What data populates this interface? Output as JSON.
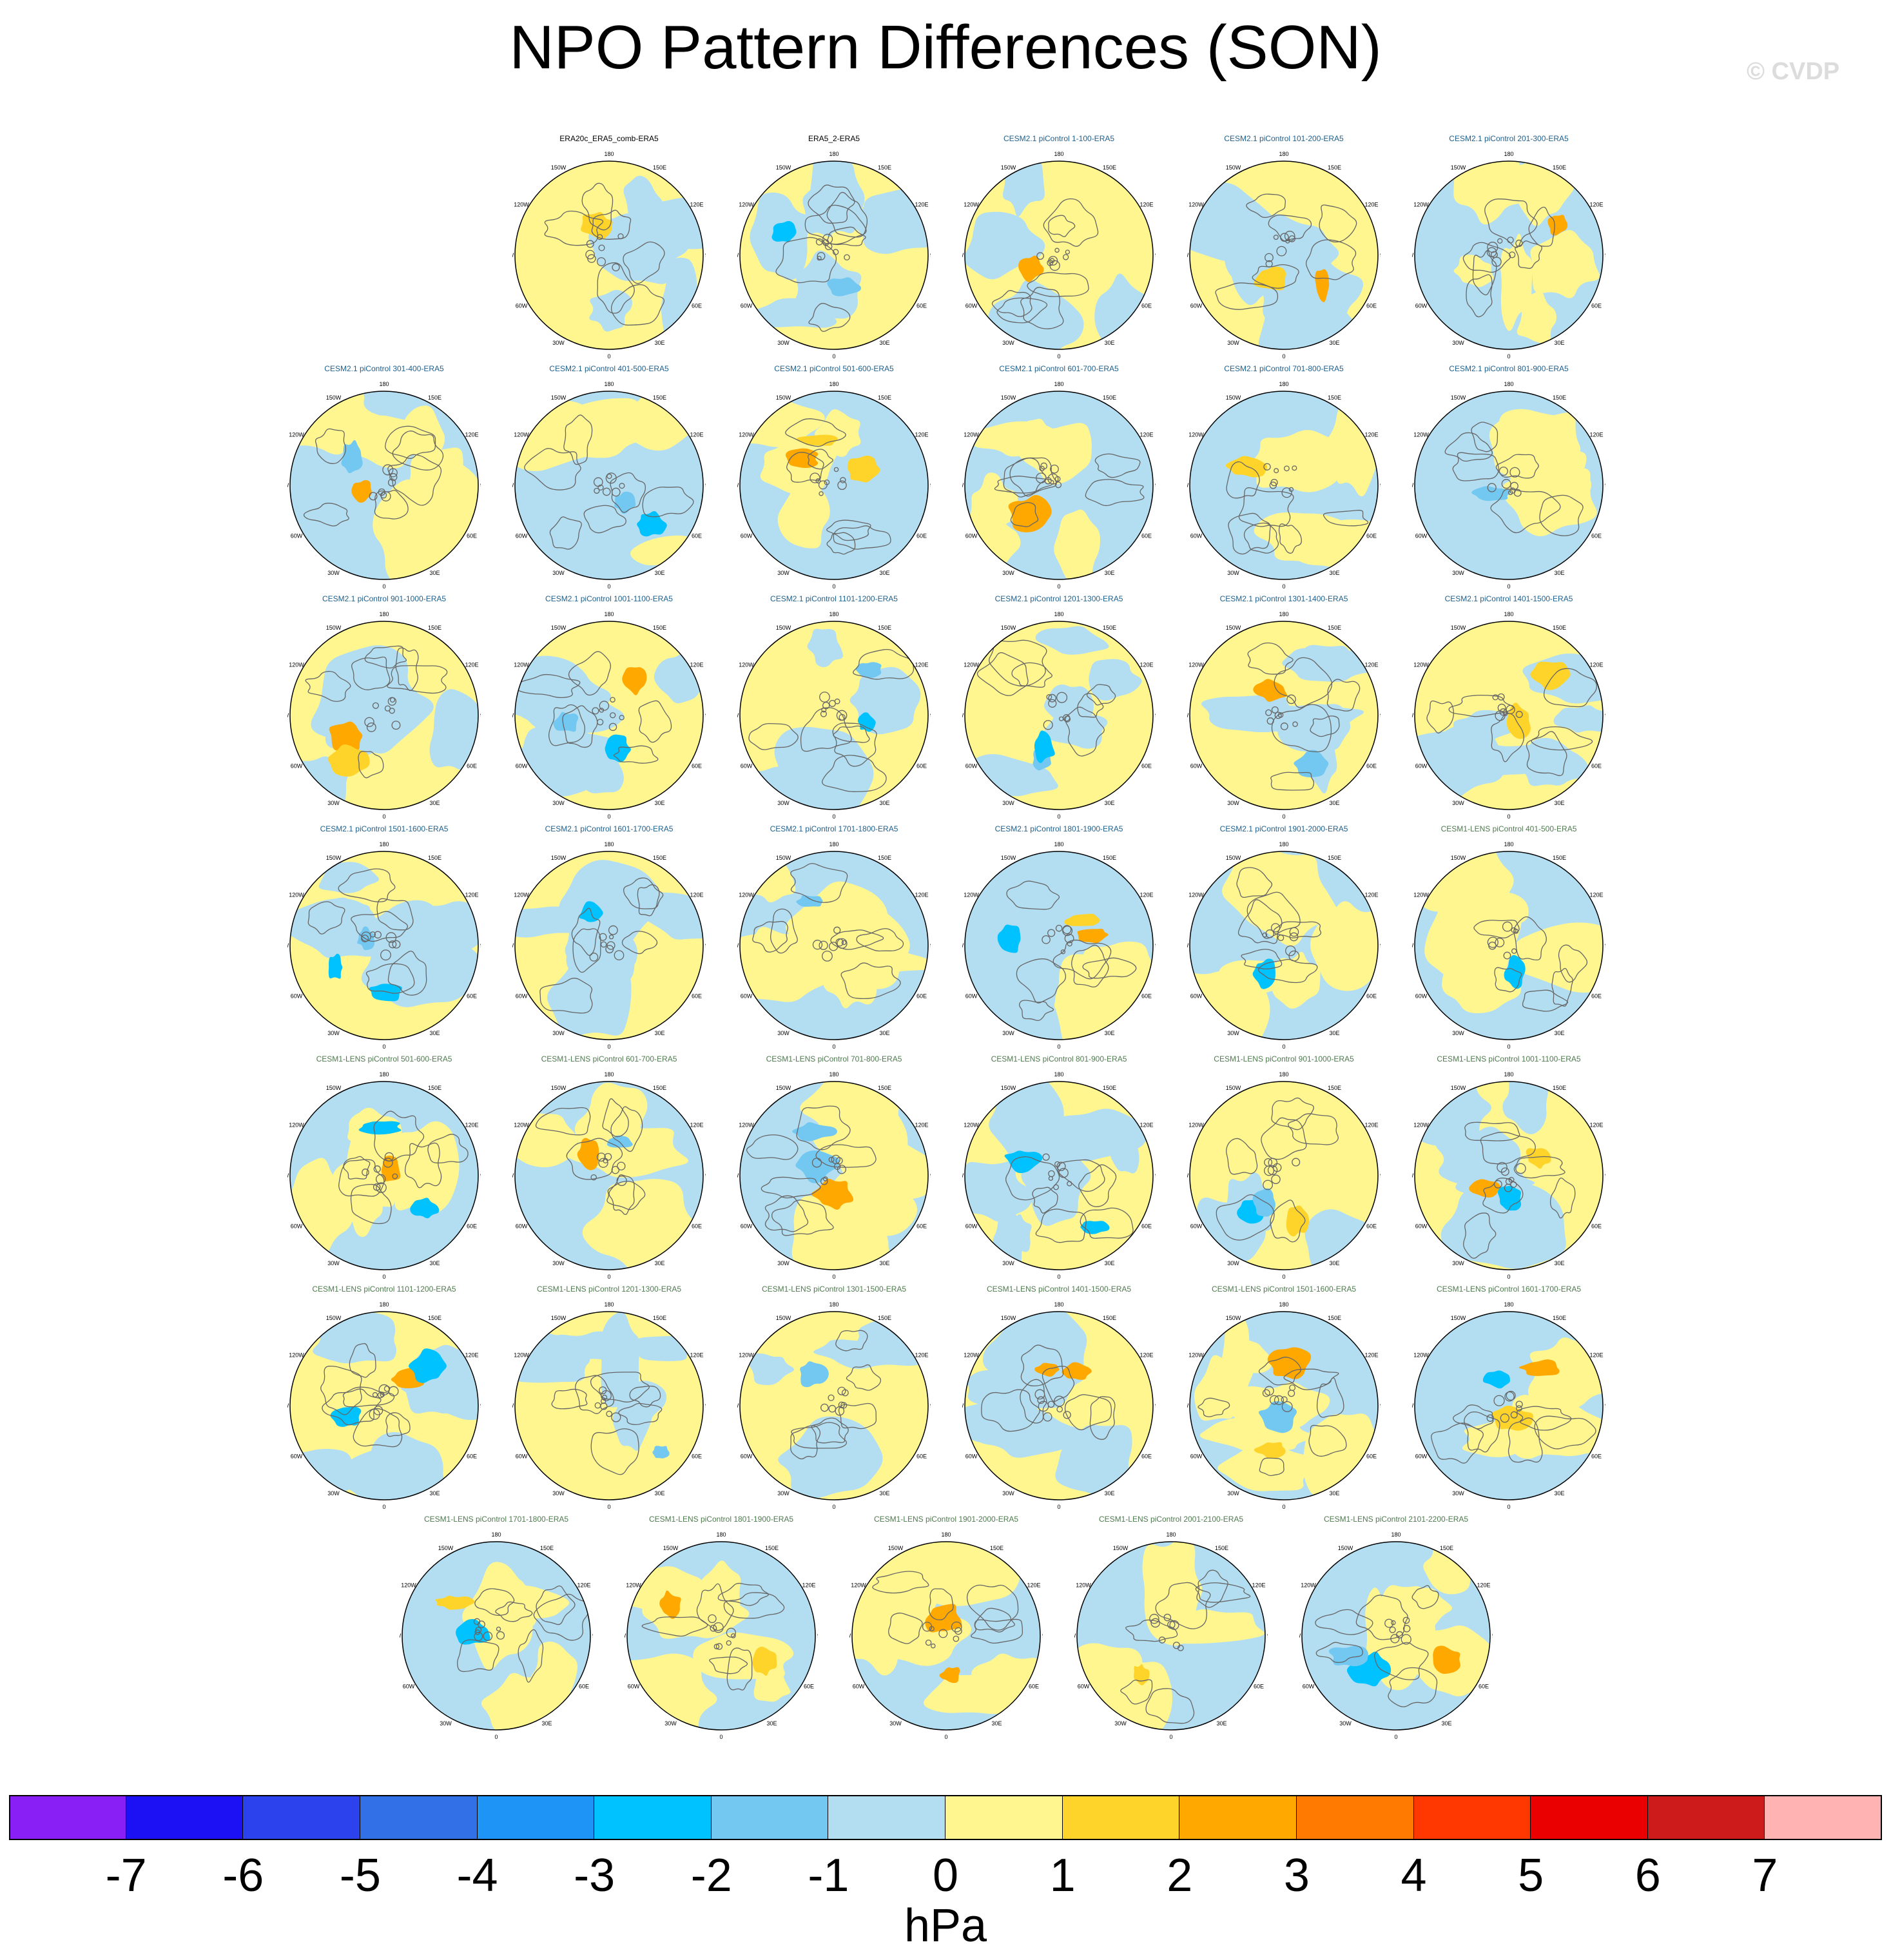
{
  "title": "NPO Pattern Differences (SON)",
  "watermark": "© CVDP",
  "lon_labels": [
    "180",
    "150E",
    "120E",
    "90E",
    "60E",
    "30E",
    "0",
    "30W",
    "60W",
    "90W",
    "120W",
    "150W"
  ],
  "panels": [
    {
      "title": "ERA20c_ERA5_comb-ERA5",
      "group": "obs"
    },
    {
      "title": "ERA5_2-ERA5",
      "group": "obs"
    },
    {
      "title": "CESM2.1 piControl 1-100-ERA5",
      "group": "cesm2"
    },
    {
      "title": "CESM2.1 piControl 101-200-ERA5",
      "group": "cesm2"
    },
    {
      "title": "CESM2.1 piControl 201-300-ERA5",
      "group": "cesm2"
    },
    {
      "title": "CESM2.1 piControl 301-400-ERA5",
      "group": "cesm2"
    },
    {
      "title": "CESM2.1 piControl 401-500-ERA5",
      "group": "cesm2"
    },
    {
      "title": "CESM2.1 piControl 501-600-ERA5",
      "group": "cesm2"
    },
    {
      "title": "CESM2.1 piControl 601-700-ERA5",
      "group": "cesm2"
    },
    {
      "title": "CESM2.1 piControl 701-800-ERA5",
      "group": "cesm2"
    },
    {
      "title": "CESM2.1 piControl 801-900-ERA5",
      "group": "cesm2"
    },
    {
      "title": "CESM2.1 piControl 901-1000-ERA5",
      "group": "cesm2"
    },
    {
      "title": "CESM2.1 piControl 1001-1100-ERA5",
      "group": "cesm2"
    },
    {
      "title": "CESM2.1 piControl 1101-1200-ERA5",
      "group": "cesm2"
    },
    {
      "title": "CESM2.1 piControl 1201-1300-ERA5",
      "group": "cesm2"
    },
    {
      "title": "CESM2.1 piControl 1301-1400-ERA5",
      "group": "cesm2"
    },
    {
      "title": "CESM2.1 piControl 1401-1500-ERA5",
      "group": "cesm2"
    },
    {
      "title": "CESM2.1 piControl 1501-1600-ERA5",
      "group": "cesm2"
    },
    {
      "title": "CESM2.1 piControl 1601-1700-ERA5",
      "group": "cesm2"
    },
    {
      "title": "CESM2.1 piControl 1701-1800-ERA5",
      "group": "cesm2"
    },
    {
      "title": "CESM2.1 piControl 1801-1900-ERA5",
      "group": "cesm2"
    },
    {
      "title": "CESM2.1 piControl 1901-2000-ERA5",
      "group": "cesm2"
    },
    {
      "title": "CESM1-LENS piControl 401-500-ERA5",
      "group": "cesm1"
    },
    {
      "title": "CESM1-LENS piControl 501-600-ERA5",
      "group": "cesm1"
    },
    {
      "title": "CESM1-LENS piControl 601-700-ERA5",
      "group": "cesm1"
    },
    {
      "title": "CESM1-LENS piControl 701-800-ERA5",
      "group": "cesm1"
    },
    {
      "title": "CESM1-LENS piControl 801-900-ERA5",
      "group": "cesm1"
    },
    {
      "title": "CESM1-LENS piControl 901-1000-ERA5",
      "group": "cesm1"
    },
    {
      "title": "CESM1-LENS piControl 1001-1100-ERA5",
      "group": "cesm1"
    },
    {
      "title": "CESM1-LENS piControl 1101-1200-ERA5",
      "group": "cesm1"
    },
    {
      "title": "CESM1-LENS piControl 1201-1300-ERA5",
      "group": "cesm1"
    },
    {
      "title": "CESM1-LENS piControl 1301-1500-ERA5",
      "group": "cesm1"
    },
    {
      "title": "CESM1-LENS piControl 1401-1500-ERA5",
      "group": "cesm1"
    },
    {
      "title": "CESM1-LENS piControl 1501-1600-ERA5",
      "group": "cesm1"
    },
    {
      "title": "CESM1-LENS piControl 1601-1700-ERA5",
      "group": "cesm1"
    },
    {
      "title": "CESM1-LENS piControl 1701-1800-ERA5",
      "group": "cesm1"
    },
    {
      "title": "CESM1-LENS piControl 1801-1900-ERA5",
      "group": "cesm1"
    },
    {
      "title": "CESM1-LENS piControl 1901-2000-ERA5",
      "group": "cesm1"
    },
    {
      "title": "CESM1-LENS piControl 2001-2100-ERA5",
      "group": "cesm1"
    },
    {
      "title": "CESM1-LENS piControl 2101-2200-ERA5",
      "group": "cesm1"
    }
  ],
  "title_colors": {
    "obs": "#000000",
    "cesm2": "#1f5f8b",
    "cesm1": "#4f7a4f"
  },
  "fill_colors": {
    "negative": "#b3def2",
    "positive": "#fff68f",
    "contour": "#666666"
  },
  "colorbar": {
    "units": "hPa",
    "ticks": [
      "-7",
      "-6",
      "-5",
      "-4",
      "-3",
      "-2",
      "-1",
      "0",
      "1",
      "2",
      "3",
      "4",
      "5",
      "6",
      "7"
    ],
    "colors": [
      "#8a1ff5",
      "#1c10f5",
      "#2b42ec",
      "#3170e6",
      "#1e94f7",
      "#00c2ff",
      "#73c8f2",
      "#b3def2",
      "#fff68f",
      "#ffd42a",
      "#ffa800",
      "#ff7a00",
      "#ff3700",
      "#ea0000",
      "#cd1b1b",
      "#ffb3b3"
    ]
  }
}
